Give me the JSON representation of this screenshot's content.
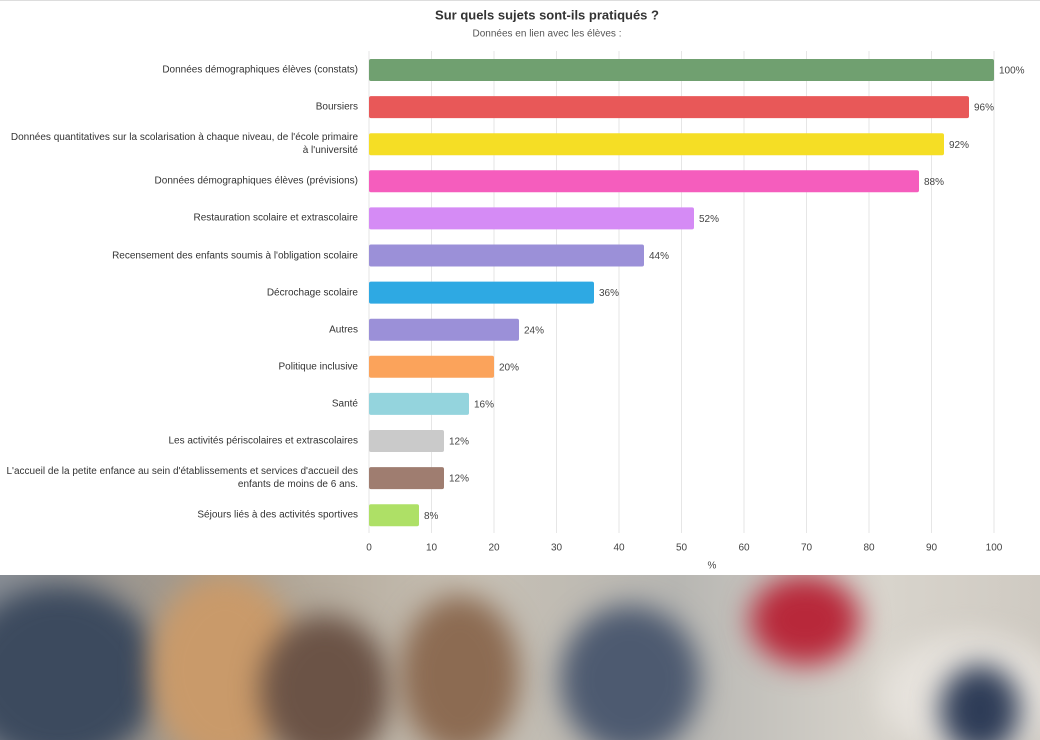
{
  "chart_data": {
    "type": "bar",
    "orientation": "horizontal",
    "title": "Sur quels sujets sont-ils pratiqués ?",
    "subtitle": "Données en lien avec les élèves :",
    "x_label": "%",
    "categories": [
      "Données démographiques élèves (constats)",
      "Boursiers",
      "Données quantitatives sur la scolarisation à chaque niveau, de l'école primaire à l'université",
      "Données démographiques élèves (prévisions)",
      "Restauration scolaire et extrascolaire",
      "Recensement des enfants soumis à l'obligation scolaire",
      "Décrochage scolaire",
      "Autres",
      "Politique inclusive",
      "Santé",
      "Les activités périscolaires et extrascolaires",
      "L'accueil de la petite enfance au sein d'établissements et services d'accueil des enfants de moins de 6 ans.",
      "Séjours liés à des activités sportives"
    ],
    "values": [
      100,
      96,
      92,
      88,
      52,
      44,
      36,
      24,
      20,
      16,
      12,
      12,
      8
    ],
    "value_labels": [
      "100%",
      "96%",
      "92%",
      "88%",
      "52%",
      "44%",
      "36%",
      "24%",
      "20%",
      "16%",
      "12%",
      "12%",
      "8%"
    ],
    "colors": [
      "#70a070",
      "#e85858",
      "#f5de25",
      "#f55dbd",
      "#d58bf5",
      "#9b90d8",
      "#2ea9e3",
      "#9b90d8",
      "#fba35b",
      "#94d4dd",
      "#cacaca",
      "#9f7d70",
      "#aee066"
    ],
    "xlim": [
      0,
      100
    ],
    "xticks": [
      0,
      10,
      20,
      30,
      40,
      50,
      60,
      70,
      80,
      90,
      100
    ],
    "grid": true
  }
}
